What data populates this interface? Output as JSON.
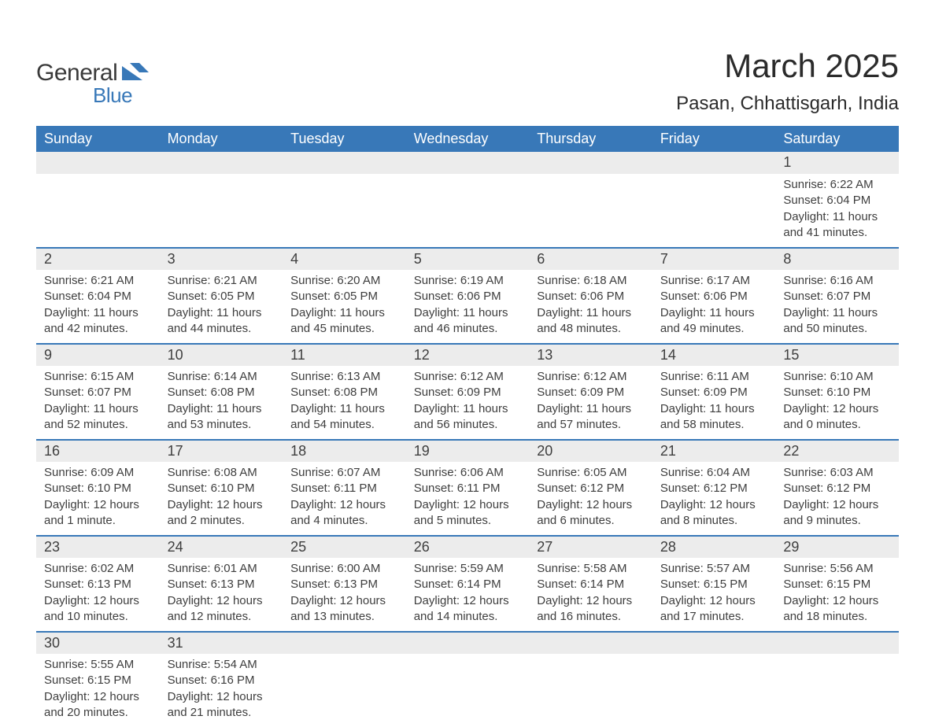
{
  "brand": {
    "text_general": "General",
    "text_blue": "Blue",
    "flag_color": "#3878b8",
    "text_color_dark": "#3a3a3a"
  },
  "header": {
    "month_title": "March 2025",
    "location": "Pasan, Chhattisgarh, India"
  },
  "calendar": {
    "type": "calendar-table",
    "header_bg": "#3878b8",
    "header_text_color": "#ffffff",
    "daynum_bg": "#ececec",
    "row_divider_color": "#3878b8",
    "text_color": "#3e3e3e",
    "background_color": "#ffffff",
    "header_fontsize": 18,
    "daynum_fontsize": 18,
    "data_fontsize": 15,
    "day_headers": [
      "Sunday",
      "Monday",
      "Tuesday",
      "Wednesday",
      "Thursday",
      "Friday",
      "Saturday"
    ],
    "weeks": [
      [
        null,
        null,
        null,
        null,
        null,
        null,
        {
          "n": "1",
          "sunrise": "Sunrise: 6:22 AM",
          "sunset": "Sunset: 6:04 PM",
          "daylight": "Daylight: 11 hours and 41 minutes."
        }
      ],
      [
        {
          "n": "2",
          "sunrise": "Sunrise: 6:21 AM",
          "sunset": "Sunset: 6:04 PM",
          "daylight": "Daylight: 11 hours and 42 minutes."
        },
        {
          "n": "3",
          "sunrise": "Sunrise: 6:21 AM",
          "sunset": "Sunset: 6:05 PM",
          "daylight": "Daylight: 11 hours and 44 minutes."
        },
        {
          "n": "4",
          "sunrise": "Sunrise: 6:20 AM",
          "sunset": "Sunset: 6:05 PM",
          "daylight": "Daylight: 11 hours and 45 minutes."
        },
        {
          "n": "5",
          "sunrise": "Sunrise: 6:19 AM",
          "sunset": "Sunset: 6:06 PM",
          "daylight": "Daylight: 11 hours and 46 minutes."
        },
        {
          "n": "6",
          "sunrise": "Sunrise: 6:18 AM",
          "sunset": "Sunset: 6:06 PM",
          "daylight": "Daylight: 11 hours and 48 minutes."
        },
        {
          "n": "7",
          "sunrise": "Sunrise: 6:17 AM",
          "sunset": "Sunset: 6:06 PM",
          "daylight": "Daylight: 11 hours and 49 minutes."
        },
        {
          "n": "8",
          "sunrise": "Sunrise: 6:16 AM",
          "sunset": "Sunset: 6:07 PM",
          "daylight": "Daylight: 11 hours and 50 minutes."
        }
      ],
      [
        {
          "n": "9",
          "sunrise": "Sunrise: 6:15 AM",
          "sunset": "Sunset: 6:07 PM",
          "daylight": "Daylight: 11 hours and 52 minutes."
        },
        {
          "n": "10",
          "sunrise": "Sunrise: 6:14 AM",
          "sunset": "Sunset: 6:08 PM",
          "daylight": "Daylight: 11 hours and 53 minutes."
        },
        {
          "n": "11",
          "sunrise": "Sunrise: 6:13 AM",
          "sunset": "Sunset: 6:08 PM",
          "daylight": "Daylight: 11 hours and 54 minutes."
        },
        {
          "n": "12",
          "sunrise": "Sunrise: 6:12 AM",
          "sunset": "Sunset: 6:09 PM",
          "daylight": "Daylight: 11 hours and 56 minutes."
        },
        {
          "n": "13",
          "sunrise": "Sunrise: 6:12 AM",
          "sunset": "Sunset: 6:09 PM",
          "daylight": "Daylight: 11 hours and 57 minutes."
        },
        {
          "n": "14",
          "sunrise": "Sunrise: 6:11 AM",
          "sunset": "Sunset: 6:09 PM",
          "daylight": "Daylight: 11 hours and 58 minutes."
        },
        {
          "n": "15",
          "sunrise": "Sunrise: 6:10 AM",
          "sunset": "Sunset: 6:10 PM",
          "daylight": "Daylight: 12 hours and 0 minutes."
        }
      ],
      [
        {
          "n": "16",
          "sunrise": "Sunrise: 6:09 AM",
          "sunset": "Sunset: 6:10 PM",
          "daylight": "Daylight: 12 hours and 1 minute."
        },
        {
          "n": "17",
          "sunrise": "Sunrise: 6:08 AM",
          "sunset": "Sunset: 6:10 PM",
          "daylight": "Daylight: 12 hours and 2 minutes."
        },
        {
          "n": "18",
          "sunrise": "Sunrise: 6:07 AM",
          "sunset": "Sunset: 6:11 PM",
          "daylight": "Daylight: 12 hours and 4 minutes."
        },
        {
          "n": "19",
          "sunrise": "Sunrise: 6:06 AM",
          "sunset": "Sunset: 6:11 PM",
          "daylight": "Daylight: 12 hours and 5 minutes."
        },
        {
          "n": "20",
          "sunrise": "Sunrise: 6:05 AM",
          "sunset": "Sunset: 6:12 PM",
          "daylight": "Daylight: 12 hours and 6 minutes."
        },
        {
          "n": "21",
          "sunrise": "Sunrise: 6:04 AM",
          "sunset": "Sunset: 6:12 PM",
          "daylight": "Daylight: 12 hours and 8 minutes."
        },
        {
          "n": "22",
          "sunrise": "Sunrise: 6:03 AM",
          "sunset": "Sunset: 6:12 PM",
          "daylight": "Daylight: 12 hours and 9 minutes."
        }
      ],
      [
        {
          "n": "23",
          "sunrise": "Sunrise: 6:02 AM",
          "sunset": "Sunset: 6:13 PM",
          "daylight": "Daylight: 12 hours and 10 minutes."
        },
        {
          "n": "24",
          "sunrise": "Sunrise: 6:01 AM",
          "sunset": "Sunset: 6:13 PM",
          "daylight": "Daylight: 12 hours and 12 minutes."
        },
        {
          "n": "25",
          "sunrise": "Sunrise: 6:00 AM",
          "sunset": "Sunset: 6:13 PM",
          "daylight": "Daylight: 12 hours and 13 minutes."
        },
        {
          "n": "26",
          "sunrise": "Sunrise: 5:59 AM",
          "sunset": "Sunset: 6:14 PM",
          "daylight": "Daylight: 12 hours and 14 minutes."
        },
        {
          "n": "27",
          "sunrise": "Sunrise: 5:58 AM",
          "sunset": "Sunset: 6:14 PM",
          "daylight": "Daylight: 12 hours and 16 minutes."
        },
        {
          "n": "28",
          "sunrise": "Sunrise: 5:57 AM",
          "sunset": "Sunset: 6:15 PM",
          "daylight": "Daylight: 12 hours and 17 minutes."
        },
        {
          "n": "29",
          "sunrise": "Sunrise: 5:56 AM",
          "sunset": "Sunset: 6:15 PM",
          "daylight": "Daylight: 12 hours and 18 minutes."
        }
      ],
      [
        {
          "n": "30",
          "sunrise": "Sunrise: 5:55 AM",
          "sunset": "Sunset: 6:15 PM",
          "daylight": "Daylight: 12 hours and 20 minutes."
        },
        {
          "n": "31",
          "sunrise": "Sunrise: 5:54 AM",
          "sunset": "Sunset: 6:16 PM",
          "daylight": "Daylight: 12 hours and 21 minutes."
        },
        null,
        null,
        null,
        null,
        null
      ]
    ]
  }
}
